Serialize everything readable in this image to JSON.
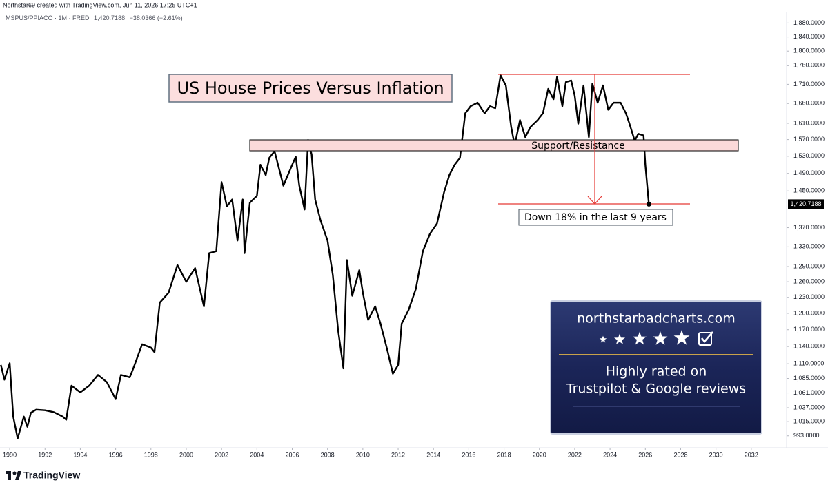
{
  "header": {
    "credit": "Northstar69 created with TradingView.com, Jun 11, 2026 17:25 UTC+1",
    "symbol": "MSPUS/PPIACO · 1M · FRED",
    "last": "1,420.7188",
    "change": "−38.0366 (−2.61%)"
  },
  "chart_data": {
    "type": "line",
    "title": "US House Prices Versus Inflation",
    "annotations": [
      "Support/Resistance",
      "Down 18% in the last 9 years"
    ],
    "color": "#000000",
    "log_scale": true,
    "x": [
      1989.5,
      1989.7,
      1990.0,
      1990.2,
      1990.45,
      1990.8,
      1991.0,
      1991.2,
      1991.5,
      1992.0,
      1992.5,
      1993.0,
      1993.2,
      1993.5,
      1994.0,
      1994.5,
      1995.0,
      1995.5,
      1996.0,
      1996.3,
      1996.8,
      1997.0,
      1997.5,
      1998.0,
      1998.2,
      1998.5,
      1999.0,
      1999.5,
      2000.0,
      2000.5,
      2001.0,
      2001.3,
      2001.7,
      2002.0,
      2002.3,
      2002.6,
      2002.9,
      2003.2,
      2003.3,
      2003.6,
      2004.0,
      2004.2,
      2004.5,
      2004.7,
      2005.0,
      2005.5,
      2006.0,
      2006.2,
      2006.4,
      2006.7,
      2006.9,
      2007.1,
      2007.3,
      2007.6,
      2008.0,
      2008.3,
      2008.6,
      2008.9,
      2009.1,
      2009.4,
      2009.8,
      2010.0,
      2010.3,
      2010.7,
      2011.0,
      2011.4,
      2011.7,
      2012.0,
      2012.2,
      2012.6,
      2013.0,
      2013.4,
      2013.8,
      2014.2,
      2014.6,
      2014.9,
      2015.2,
      2015.5,
      2015.8,
      2016.1,
      2016.5,
      2016.9,
      2017.2,
      2017.5,
      2017.8,
      2018.1,
      2018.4,
      2018.6,
      2018.9,
      2019.2,
      2019.5,
      2019.9,
      2020.2,
      2020.5,
      2020.8,
      2021.0,
      2021.3,
      2021.5,
      2021.8,
      2022.0,
      2022.2,
      2022.5,
      2022.8,
      2023.0,
      2023.3,
      2023.6,
      2023.9,
      2024.2,
      2024.6,
      2024.9,
      2025.1,
      2025.4,
      2025.6,
      2025.9,
      2026.0,
      2026.2
    ],
    "values": [
      1108,
      1083,
      1111,
      1023,
      989,
      1023,
      1007,
      1029,
      1034,
      1033,
      1030,
      1023,
      1018,
      1073,
      1062,
      1073,
      1091,
      1079,
      1051,
      1091,
      1087,
      1102,
      1144,
      1138,
      1130,
      1220,
      1239,
      1293,
      1260,
      1287,
      1213,
      1317,
      1321,
      1470,
      1416,
      1431,
      1343,
      1431,
      1317,
      1424,
      1439,
      1510,
      1486,
      1526,
      1542,
      1462,
      1510,
      1529,
      1462,
      1409,
      1569,
      1534,
      1431,
      1386,
      1343,
      1273,
      1169,
      1102,
      1303,
      1233,
      1283,
      1239,
      1188,
      1213,
      1181,
      1132,
      1093,
      1108,
      1181,
      1207,
      1246,
      1321,
      1357,
      1379,
      1447,
      1486,
      1510,
      1526,
      1635,
      1653,
      1662,
      1635,
      1653,
      1648,
      1734,
      1707,
      1601,
      1556,
      1618,
      1576,
      1601,
      1618,
      1635,
      1698,
      1671,
      1730,
      1653,
      1716,
      1720,
      1680,
      1609,
      1707,
      1576,
      1712,
      1662,
      1707,
      1644,
      1662,
      1662,
      1635,
      1609,
      1567,
      1584,
      1580,
      1510,
      1420.7188
    ],
    "xlim": [
      1989.45,
      2034.0
    ],
    "xticks": [
      1990,
      1992,
      1994,
      1996,
      1998,
      2000,
      2002,
      2004,
      2006,
      2008,
      2010,
      2012,
      2014,
      2016,
      2018,
      2020,
      2022,
      2024,
      2026,
      2028,
      2030,
      2032
    ],
    "ylim": [
      977,
      1907
    ],
    "yticks": [
      {
        "value": 993,
        "label": "993.0000"
      },
      {
        "value": 1015,
        "label": "1,015.0000"
      },
      {
        "value": 1037,
        "label": "1,037.0000"
      },
      {
        "value": 1061,
        "label": "1,061.0000"
      },
      {
        "value": 1085,
        "label": "1,085.0000"
      },
      {
        "value": 1110,
        "label": "1,110.0000"
      },
      {
        "value": 1140,
        "label": "1,140.0000"
      },
      {
        "value": 1170,
        "label": "1,170.0000"
      },
      {
        "value": 1200,
        "label": "1,200.0000"
      },
      {
        "value": 1230,
        "label": "1,230.0000"
      },
      {
        "value": 1260,
        "label": "1,260.0000"
      },
      {
        "value": 1290,
        "label": "1,290.0000"
      },
      {
        "value": 1330,
        "label": "1,330.0000"
      },
      {
        "value": 1370,
        "label": "1,370.0000"
      },
      {
        "value": 1450,
        "label": "1,450.0000"
      },
      {
        "value": 1490,
        "label": "1,490.0000"
      },
      {
        "value": 1530,
        "label": "1,530.0000"
      },
      {
        "value": 1570,
        "label": "1,570.0000"
      },
      {
        "value": 1610,
        "label": "1,610.0000"
      },
      {
        "value": 1660,
        "label": "1,660.0000"
      },
      {
        "value": 1710,
        "label": "1,710.0000"
      },
      {
        "value": 1760,
        "label": "1,760.0000"
      },
      {
        "value": 1800,
        "label": "1,800.0000"
      },
      {
        "value": 1840,
        "label": "1,840.0000"
      },
      {
        "value": 1880,
        "label": "1,880.0000"
      }
    ]
  },
  "watermark": {
    "site": "northstarbadcharts.com",
    "line1": "Highly rated on",
    "line2": "Trustpilot & Google reviews"
  },
  "footer": {
    "brand": "TradingView"
  }
}
